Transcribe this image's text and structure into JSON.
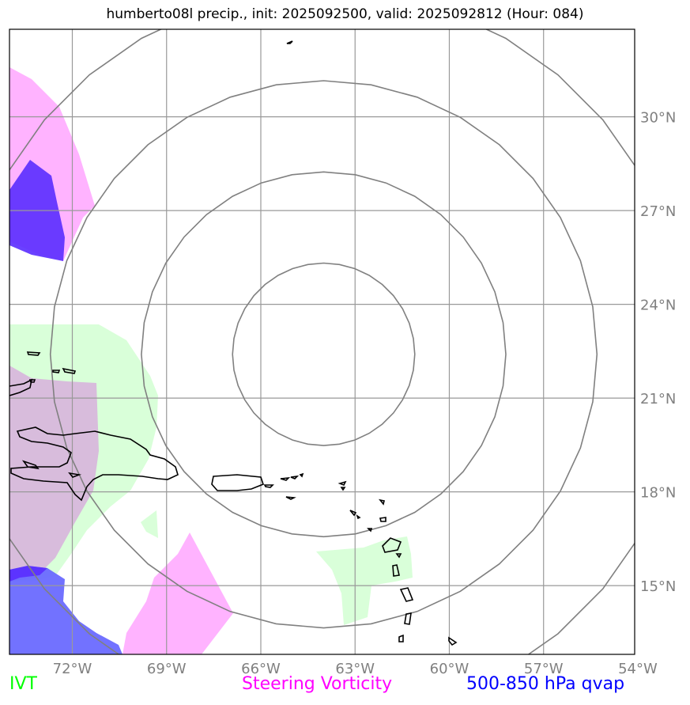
{
  "title": "humberto08l precip., init: 2025092500, valid: 2025092812 (Hour: 084)",
  "lon_ticks": [
    {
      "lon": -72,
      "label": "72°W"
    },
    {
      "lon": -69,
      "label": "69°W"
    },
    {
      "lon": -66,
      "label": "66°W"
    },
    {
      "lon": -63,
      "label": "63°W"
    },
    {
      "lon": -60,
      "label": "60°W"
    },
    {
      "lon": -57,
      "label": "57°W"
    },
    {
      "lon": -54,
      "label": "54°W"
    }
  ],
  "lat_ticks": [
    {
      "lat": 30,
      "label": "30°N"
    },
    {
      "lat": 27,
      "label": "27°N"
    },
    {
      "lat": 24,
      "label": "24°N"
    },
    {
      "lat": 21,
      "label": "21°N"
    },
    {
      "lat": 18,
      "label": "18°N"
    },
    {
      "lat": 15,
      "label": "15°N"
    }
  ],
  "extent": {
    "lon_min": -74.0,
    "lon_max": -54.1,
    "lat_min": 12.8,
    "lat_max": 32.8
  },
  "storm_center": {
    "lon": -64.0,
    "lat": 22.4
  },
  "range_rings_deg": [
    2.9,
    5.8,
    8.7,
    11.6
  ],
  "legend": {
    "ivt": {
      "label": "IVT",
      "color": "#00ff00"
    },
    "vorticity": {
      "label": "Steering Vorticity",
      "color": "#ff00ff"
    },
    "qvap": {
      "label": "500-850 hPa qvap",
      "color": "#0000ff"
    }
  },
  "colors": {
    "grid": "#999999",
    "rings": "#808080",
    "coast": "#000000",
    "ivt_fill": "#d9ffd9",
    "vort_fill": "#ffb3ff",
    "overlap_fill": "#d8bcdc",
    "qvap_fill": "#6a6aff",
    "qvap_dark": "#5a2cff"
  }
}
